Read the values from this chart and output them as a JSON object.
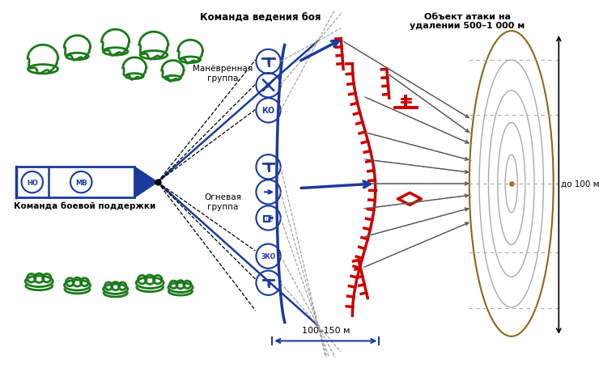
{
  "bg_color": "#ffffff",
  "blue": "#1a3a9e",
  "red": "#cc0000",
  "green": "#1a7a1a",
  "title_combat": "Команда ведения боя",
  "title_object": "Объект атаки на\nудалении 500–1 000 м",
  "label_maneuver": "Манёвренная\nгруппа",
  "label_fire": "Огневая\nгруппа",
  "label_support": "Команда боевой поддержки",
  "label_100_150": "100–150 м",
  "label_100": "до 100 м"
}
